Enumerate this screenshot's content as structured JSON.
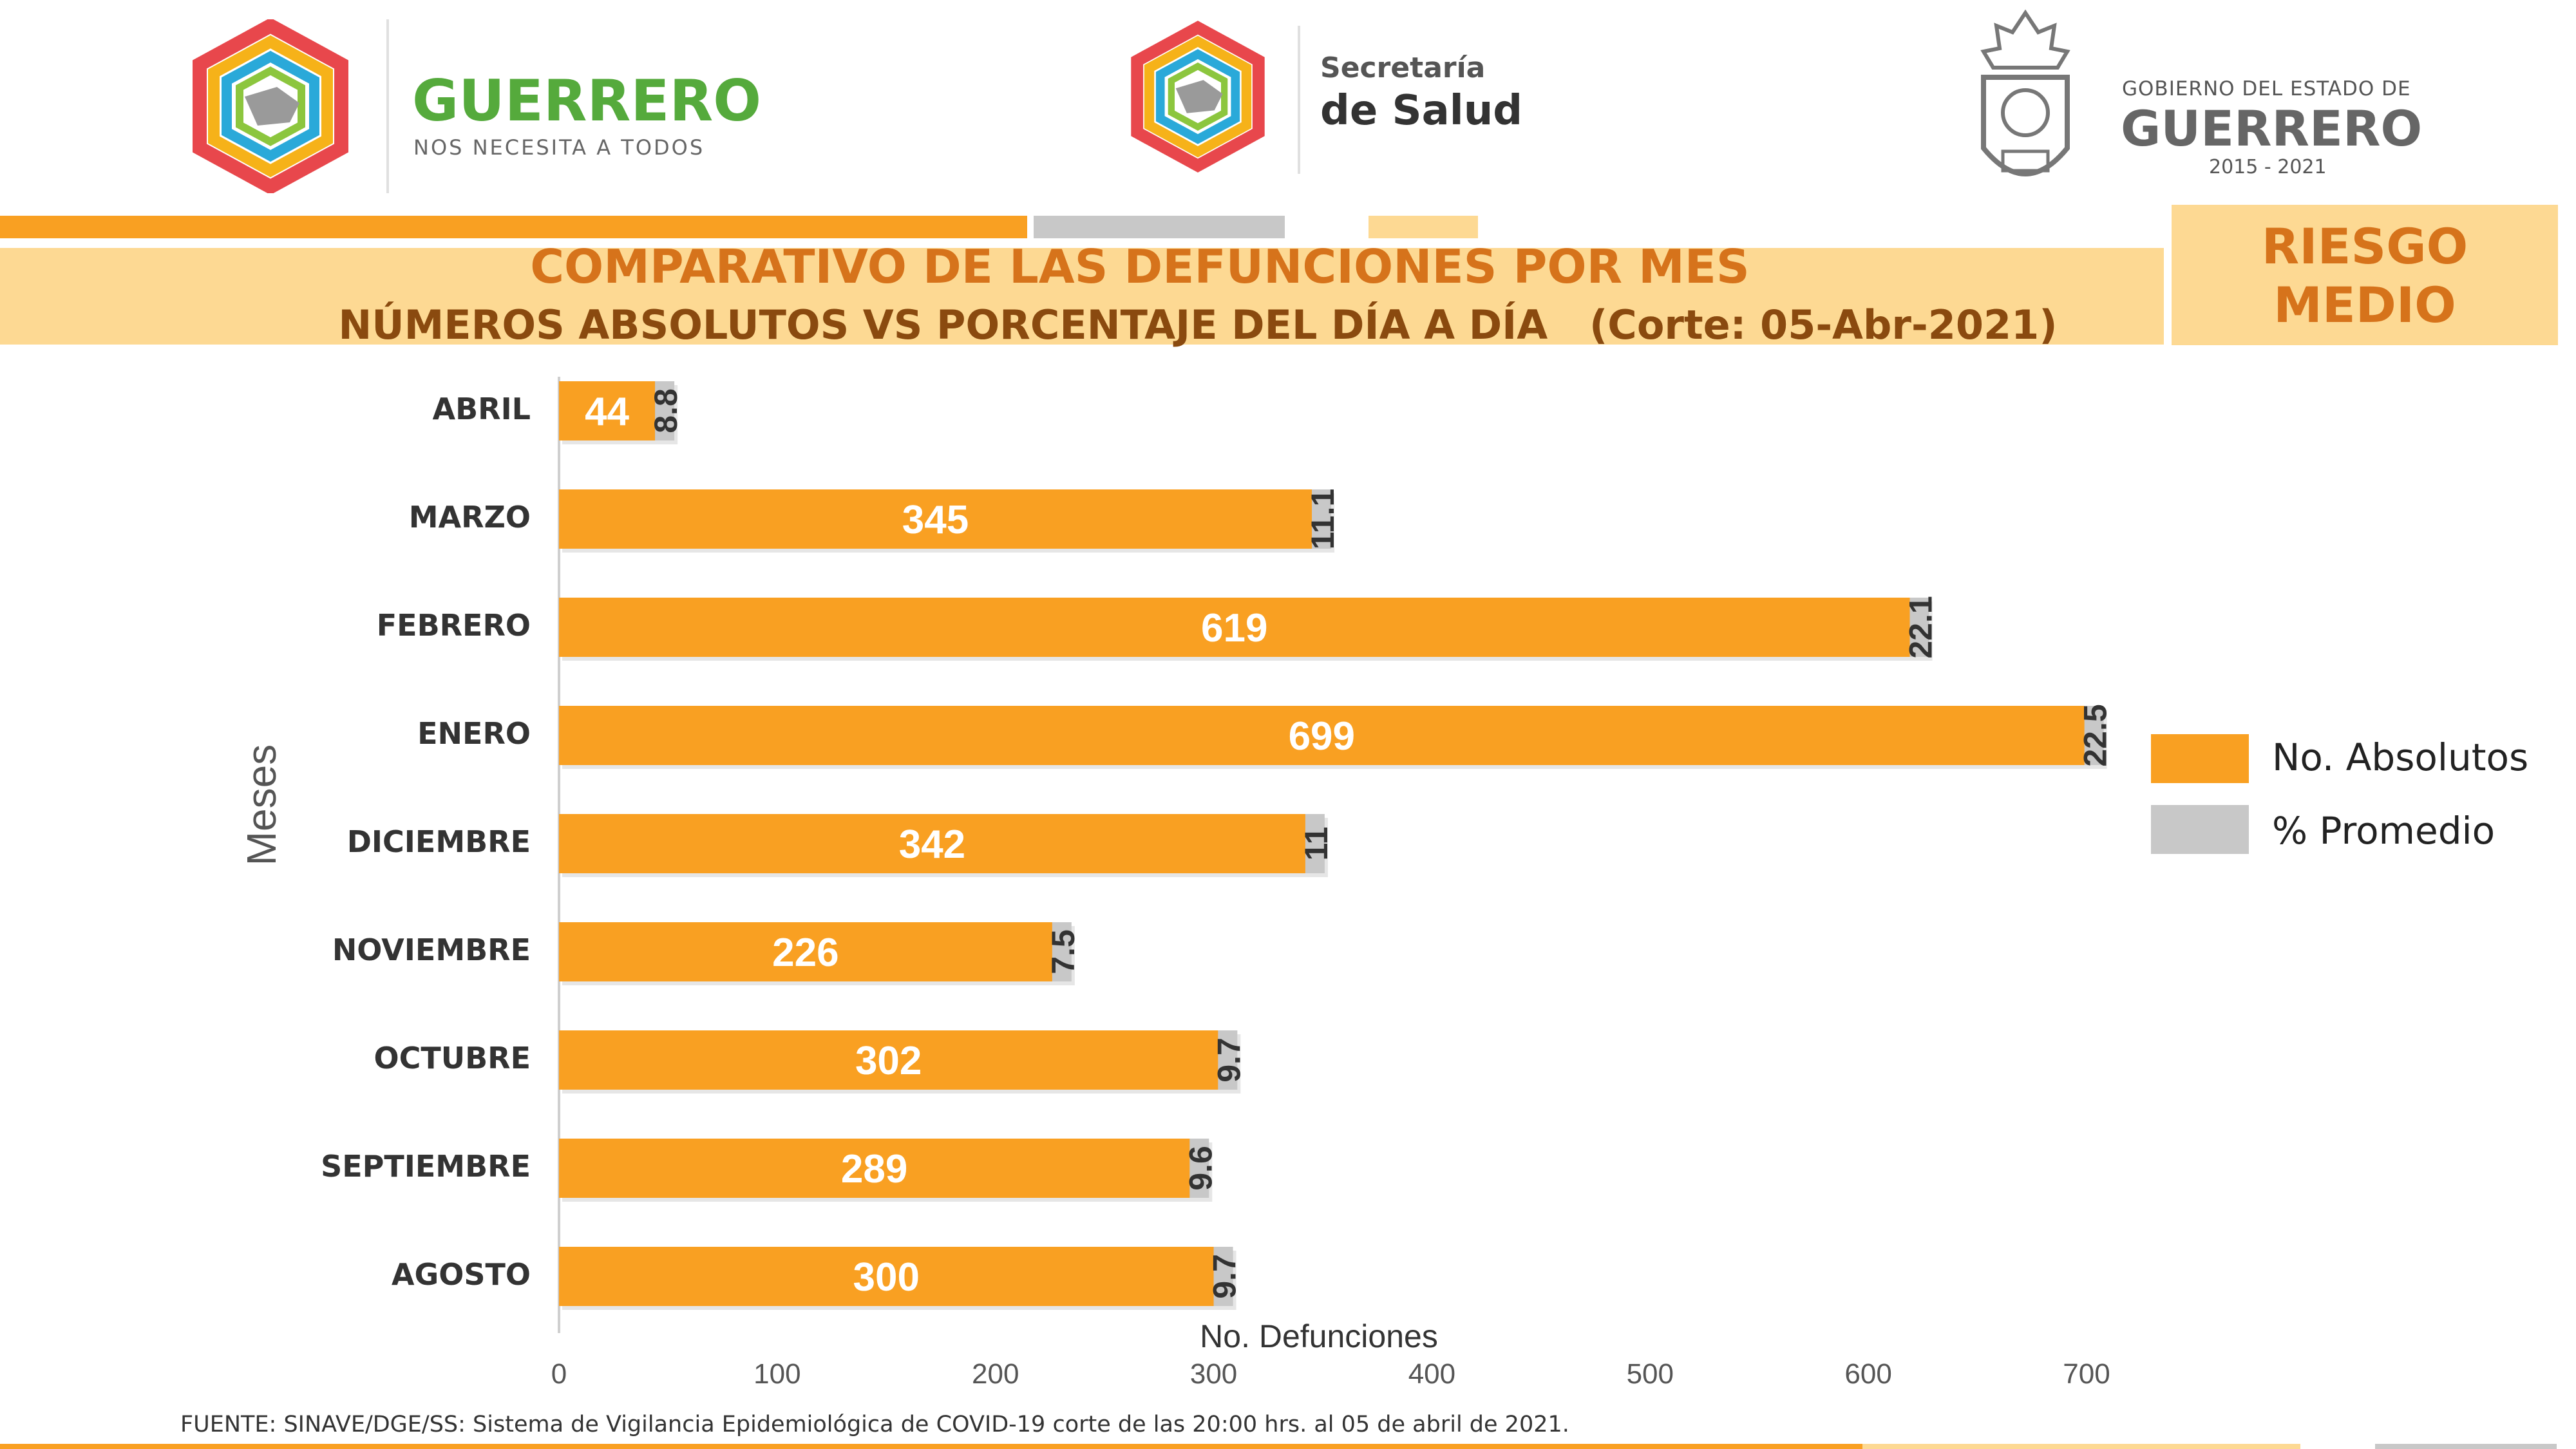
{
  "header": {
    "left_logo": {
      "title": "GUERRERO",
      "subtitle": "NOS NECESITA A TODOS"
    },
    "center_logo": {
      "line1": "Secretaría",
      "line2": "de Salud"
    },
    "right_logo": {
      "line1": "GOBIERNO DEL ESTADO DE",
      "line2": "GUERRERO",
      "line3": "2015 - 2021"
    }
  },
  "title": "COMPARATIVO DE LAS DEFUNCIONES POR MES",
  "subtitle": "NÚMEROS ABSOLUTOS VS PORCENTAJE DEL DÍA A DÍA   (Corte: 05-Abr-2021)",
  "risk_badge": {
    "line1": "RIESGO",
    "line2": "MEDIO"
  },
  "footer": "FUENTE: SINAVE/DGE/SS: Sistema de Vigilancia Epidemiológica de COVID-19 corte de las 20:00 hrs. al 05 de  abril de 2021.",
  "colors": {
    "orange": "#f9a022",
    "gray": "#c8c8c8",
    "band": "#fdd993",
    "title": "#d6731b"
  },
  "chart_data": {
    "type": "bar",
    "orientation": "horizontal",
    "xlabel": "No. Defunciones",
    "ylabel": "Meses",
    "xlim": [
      0,
      700
    ],
    "xticks": [
      0,
      100,
      200,
      300,
      400,
      500,
      600,
      700
    ],
    "categories": [
      "ABRIL",
      "MARZO",
      "FEBRERO",
      "ENERO",
      "DICIEMBRE",
      "NOVIEMBRE",
      "OCTUBRE",
      "SEPTIEMBRE",
      "AGOSTO"
    ],
    "series": [
      {
        "name": "No. Absolutos",
        "color": "#f9a022",
        "values": [
          44,
          345,
          619,
          699,
          342,
          226,
          302,
          289,
          300
        ]
      },
      {
        "name": "% Promedio",
        "color": "#c8c8c8",
        "values": [
          8.8,
          11.1,
          22.1,
          22.5,
          11,
          7.5,
          9.7,
          9.6,
          9.7
        ]
      }
    ],
    "legend_position": "right"
  }
}
